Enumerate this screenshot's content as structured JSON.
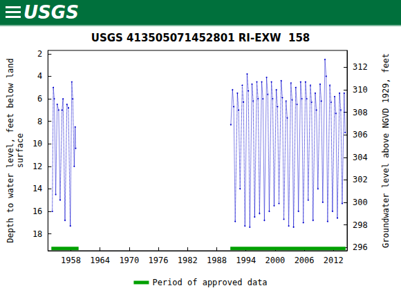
{
  "header": {
    "logo": "USGS"
  },
  "chart_data": {
    "type": "line",
    "title": "USGS 413505071452801 RI-EXW  158",
    "y_label": "Depth to water level, feet below land\nsurface",
    "y2_label": "Groundwater level above NGVD 1929, feet",
    "xlim": [
      1953.3,
      2014.8
    ],
    "xticks": [
      1958,
      1964,
      1970,
      1976,
      1982,
      1988,
      1994,
      2000,
      2006,
      2012
    ],
    "ylim": [
      1.7,
      19.5
    ],
    "yticks": [
      2,
      4,
      6,
      8,
      10,
      12,
      14,
      16,
      18
    ],
    "y_inverted": true,
    "y2lim": [
      295.7,
      313.5
    ],
    "y2ticks": [
      296,
      298,
      300,
      302,
      304,
      306,
      308,
      310,
      312
    ],
    "grid": false,
    "legend": "bottom",
    "series": [
      {
        "color": "#0000cc",
        "marker": "circle",
        "line_style": "dotted",
        "x": [
          1954.2,
          1954.4,
          1954.6,
          1954.9,
          1955.2,
          1955.5,
          1955.8,
          1956.2,
          1956.4,
          1956.8,
          1957.2,
          1957.5,
          1957.9,
          1958.2,
          1958.4,
          1958.7,
          1958.9,
          1959.0,
          1975,
          1990.9,
          1991.25,
          1991.5,
          1991.8,
          1992.25,
          1992.5,
          1992.8,
          1993.25,
          1993.5,
          1993.8,
          1994.25,
          1994.5,
          1994.8,
          1995.25,
          1995.5,
          1995.8,
          1996.25,
          1996.5,
          1996.8,
          1997.25,
          1997.5,
          1997.8,
          1998.25,
          1998.5,
          1998.8,
          1999.25,
          1999.5,
          1999.8,
          2000.25,
          2000.5,
          2000.8,
          2001.25,
          2001.5,
          2001.8,
          2002.25,
          2002.5,
          2002.8,
          2003.25,
          2003.5,
          2003.8,
          2004.25,
          2004.5,
          2004.8,
          2005.25,
          2005.5,
          2005.8,
          2006.25,
          2006.5,
          2006.8,
          2007.25,
          2007.5,
          2007.8,
          2008.25,
          2008.5,
          2008.8,
          2009.25,
          2009.5,
          2009.8,
          2010.25,
          2010.5,
          2010.8,
          2011.25,
          2011.5,
          2011.8,
          2012.25,
          2012.5,
          2012.8,
          2013.25,
          2013.5,
          2013.8,
          2014.2,
          2014.4
        ],
        "values": [
          16.0,
          5.0,
          6.0,
          14.5,
          6.5,
          7.0,
          15.0,
          7.0,
          6.0,
          16.8,
          6.5,
          6.8,
          17.3,
          4.5,
          6.0,
          12.0,
          8.5,
          10.4,
          null,
          8.3,
          5.2,
          6.7,
          16.9,
          5.5,
          7.0,
          14.0,
          4.8,
          6.3,
          17.3,
          3.8,
          5.3,
          17.4,
          4.7,
          6.2,
          16.5,
          4.5,
          6.0,
          16.2,
          4.5,
          6.0,
          16.8,
          4.1,
          5.6,
          16.0,
          4.5,
          6.0,
          15.5,
          5.2,
          6.7,
          15.3,
          4.4,
          5.9,
          16.7,
          6.2,
          7.7,
          17.3,
          4.6,
          6.1,
          17.4,
          5.0,
          6.5,
          16.0,
          4.5,
          6.0,
          17.0,
          4.5,
          6.0,
          15.0,
          4.8,
          6.3,
          16.8,
          5.5,
          7.0,
          14.0,
          4.7,
          6.2,
          15.2,
          2.5,
          4.0,
          16.9,
          4.8,
          6.3,
          16.0,
          5.8,
          7.3,
          16.6,
          5.5,
          7.0,
          15.3,
          5.5,
          9.0
        ]
      },
      {
        "name": "Period of approved data",
        "color": "#00a000",
        "line_style": "solid",
        "x": [
          1954.0,
          1959.6,
          1975,
          1990.8,
          2014.5
        ],
        "values": [
          19.3,
          19.3,
          null,
          19.3,
          19.3
        ]
      }
    ]
  }
}
